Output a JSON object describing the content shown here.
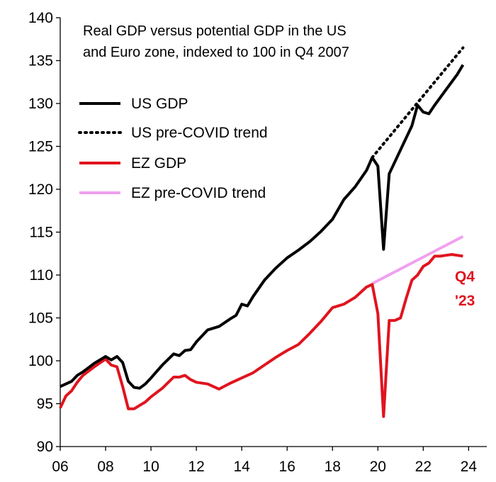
{
  "chart_data": {
    "type": "line",
    "title": "Real GDP versus potential GDP in the US",
    "subtitle": "and Euro zone, indexed to 100 in Q4 2007",
    "xlabel": "",
    "ylabel": "",
    "xlim": [
      2006,
      2024.8
    ],
    "ylim": [
      90,
      140
    ],
    "x_ticks": [
      2006,
      2008,
      2010,
      2012,
      2014,
      2016,
      2018,
      2020,
      2022,
      2024
    ],
    "x_tick_labels": [
      "06",
      "08",
      "10",
      "12",
      "14",
      "16",
      "18",
      "20",
      "22",
      "24"
    ],
    "y_ticks": [
      90,
      95,
      100,
      105,
      110,
      115,
      120,
      125,
      130,
      135,
      140
    ],
    "y_tick_labels": [
      "90",
      "95",
      "100",
      "105",
      "110",
      "115",
      "120",
      "125",
      "130",
      "135",
      "140"
    ],
    "grid": false,
    "legend_position": "top-left",
    "annotation": {
      "line1": "Q4",
      "line2": "'23",
      "color": "#e0141e"
    },
    "series": [
      {
        "name": "US GDP",
        "color": "#000000",
        "style": "solid",
        "x": [
          2006.0,
          2006.5,
          2006.75,
          2007.0,
          2007.5,
          2008.0,
          2008.25,
          2008.5,
          2008.75,
          2009.0,
          2009.25,
          2009.5,
          2009.75,
          2010.0,
          2010.5,
          2011.0,
          2011.25,
          2011.5,
          2011.75,
          2012.0,
          2012.5,
          2013.0,
          2013.5,
          2013.75,
          2014.0,
          2014.25,
          2014.5,
          2015.0,
          2015.5,
          2016.0,
          2016.5,
          2017.0,
          2017.5,
          2018.0,
          2018.5,
          2019.0,
          2019.5,
          2019.75,
          2020.0,
          2020.25,
          2020.5,
          2021.0,
          2021.5,
          2021.75,
          2022.0,
          2022.25,
          2022.5,
          2023.0,
          2023.5,
          2023.75
        ],
        "y": [
          97.0,
          97.6,
          98.3,
          98.7,
          99.7,
          100.5,
          100.1,
          100.5,
          99.8,
          97.6,
          96.9,
          96.8,
          97.3,
          98.0,
          99.5,
          100.8,
          100.6,
          101.2,
          101.3,
          102.2,
          103.6,
          104.0,
          104.9,
          105.3,
          106.6,
          106.4,
          107.5,
          109.4,
          110.8,
          112.0,
          112.9,
          113.9,
          115.1,
          116.5,
          118.8,
          120.3,
          122.2,
          123.7,
          122.7,
          113.0,
          121.8,
          124.6,
          127.4,
          129.8,
          129.0,
          128.8,
          129.8,
          131.6,
          133.4,
          134.5
        ]
      },
      {
        "name": "US pre-COVID trend",
        "color": "#000000",
        "style": "dotted",
        "x": [
          2019.75,
          2023.75
        ],
        "y": [
          123.7,
          136.5
        ]
      },
      {
        "name": "EZ GDP",
        "color": "#e0141e",
        "style": "solid",
        "x": [
          2006.0,
          2006.25,
          2006.5,
          2006.75,
          2007.0,
          2007.5,
          2008.0,
          2008.25,
          2008.5,
          2008.75,
          2009.0,
          2009.25,
          2009.5,
          2009.75,
          2010.0,
          2010.5,
          2011.0,
          2011.25,
          2011.5,
          2011.75,
          2012.0,
          2012.5,
          2013.0,
          2013.5,
          2014.0,
          2014.5,
          2015.0,
          2015.5,
          2016.0,
          2016.5,
          2017.0,
          2017.5,
          2018.0,
          2018.25,
          2018.5,
          2018.75,
          2019.0,
          2019.5,
          2019.75,
          2020.0,
          2020.25,
          2020.5,
          2020.75,
          2021.0,
          2021.25,
          2021.5,
          2021.75,
          2022.0,
          2022.25,
          2022.5,
          2022.75,
          2023.0,
          2023.25,
          2023.5,
          2023.75
        ],
        "y": [
          94.5,
          95.9,
          96.5,
          97.5,
          98.3,
          99.3,
          100.2,
          99.5,
          99.3,
          97.0,
          94.4,
          94.4,
          94.8,
          95.2,
          95.8,
          96.8,
          98.1,
          98.1,
          98.3,
          97.8,
          97.5,
          97.3,
          96.7,
          97.4,
          98.0,
          98.6,
          99.5,
          100.4,
          101.2,
          101.9,
          103.2,
          104.6,
          106.2,
          106.4,
          106.6,
          107.0,
          107.4,
          108.6,
          108.9,
          105.5,
          93.5,
          104.7,
          104.7,
          105.0,
          107.3,
          109.4,
          110.0,
          111.0,
          111.4,
          112.2,
          112.2,
          112.3,
          112.4,
          112.3,
          112.2
        ]
      },
      {
        "name": "EZ pre-COVID trend",
        "color": "#f0a0f0",
        "style": "solid",
        "x": [
          2019.75,
          2023.75
        ],
        "y": [
          109.0,
          114.5
        ]
      }
    ]
  }
}
